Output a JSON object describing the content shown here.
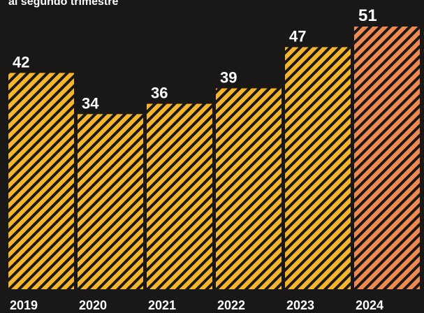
{
  "header": {
    "subtitle": "al segundo trimestre"
  },
  "colors": {
    "background": "#1a1816",
    "bar": "#f5b52e",
    "bar_highlight": "#ee8a52",
    "hatch": "#1a1816",
    "text": "#ffffff"
  },
  "chart_data": {
    "type": "bar",
    "title": "",
    "subtitle": "al segundo trimestre",
    "xlabel": "",
    "ylabel": "",
    "categories": [
      "2019",
      "2020",
      "2021",
      "2022",
      "2023",
      "2024"
    ],
    "values": [
      42,
      34,
      36,
      39,
      47,
      51
    ],
    "highlight_index": 5,
    "ylim": [
      0,
      51
    ],
    "grid": false,
    "legend": "none"
  }
}
